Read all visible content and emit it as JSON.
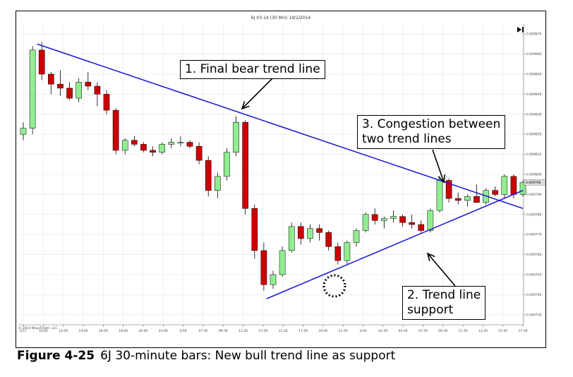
{
  "chart_data": {
    "type": "candlestick",
    "title": "6J 03-14 (30 Min)  19/2/2014",
    "copyright": "© 2014 NinjaTrader, LLC",
    "y_ticks": [
      "0.009870",
      "0.009860",
      "0.009850",
      "0.009840",
      "0.009830",
      "0.009820",
      "0.009810",
      "0.009800",
      "0.009790",
      "0.009780",
      "0.009770",
      "0.009760",
      "0.009750",
      "0.009740",
      "0.009730"
    ],
    "ylim": [
      0.009725,
      0.009875
    ],
    "x_ticks": [
      "2/17",
      "10:00",
      "12:00",
      "14:00",
      "16:00",
      "18:00",
      "20:00",
      "22:00",
      "2/18",
      "07:30",
      "09:30",
      "11:30",
      "13:30",
      "15:30",
      "17:30",
      "19:30",
      "21:30",
      "2/19",
      "02:30",
      "04:30",
      "07:30",
      "09:30",
      "11:30",
      "13:30",
      "15:30",
      "17:30"
    ],
    "last_price": "0.009796",
    "bull_color": "#90ee90",
    "bear_color": "#cc0000",
    "trendline_color": "#1f1fd6",
    "candles": [
      [
        0.00982,
        0.009826,
        0.009817,
        0.009823
      ],
      [
        0.009823,
        0.009864,
        0.00982,
        0.009862
      ],
      [
        0.009862,
        0.009866,
        0.009847,
        0.00985
      ],
      [
        0.00985,
        0.009851,
        0.00984,
        0.009845
      ],
      [
        0.009845,
        0.009852,
        0.009839,
        0.009843
      ],
      [
        0.009843,
        0.009846,
        0.009837,
        0.009838
      ],
      [
        0.009838,
        0.009848,
        0.009836,
        0.009846
      ],
      [
        0.009846,
        0.009851,
        0.009842,
        0.009844
      ],
      [
        0.009844,
        0.009846,
        0.009834,
        0.00984
      ],
      [
        0.00984,
        0.009842,
        0.00983,
        0.009832
      ],
      [
        0.009832,
        0.009833,
        0.00981,
        0.009812
      ],
      [
        0.009812,
        0.009818,
        0.00981,
        0.009817
      ],
      [
        0.009817,
        0.009819,
        0.009814,
        0.009815
      ],
      [
        0.009815,
        0.009816,
        0.009811,
        0.009812
      ],
      [
        0.009812,
        0.009814,
        0.009809,
        0.009811
      ],
      [
        0.009811,
        0.009816,
        0.00981,
        0.009815
      ],
      [
        0.009815,
        0.009818,
        0.009813,
        0.009816
      ],
      [
        0.009816,
        0.009819,
        0.009814,
        0.009816
      ],
      [
        0.009816,
        0.009817,
        0.009813,
        0.009814
      ],
      [
        0.009814,
        0.009816,
        0.009805,
        0.009807
      ],
      [
        0.009807,
        0.009809,
        0.009789,
        0.009792
      ],
      [
        0.009792,
        0.009801,
        0.009788,
        0.009799
      ],
      [
        0.009799,
        0.009813,
        0.009797,
        0.009811
      ],
      [
        0.009811,
        0.009829,
        0.009809,
        0.009826
      ],
      [
        0.009826,
        0.009827,
        0.00978,
        0.009783
      ],
      [
        0.009783,
        0.009785,
        0.009758,
        0.009762
      ],
      [
        0.009762,
        0.009766,
        0.009742,
        0.009745
      ],
      [
        0.009745,
        0.009752,
        0.009743,
        0.00975
      ],
      [
        0.00975,
        0.009764,
        0.009749,
        0.009762
      ],
      [
        0.009762,
        0.009776,
        0.009761,
        0.009774
      ],
      [
        0.009774,
        0.009776,
        0.009765,
        0.009768
      ],
      [
        0.009768,
        0.009775,
        0.009766,
        0.009773
      ],
      [
        0.009773,
        0.009775,
        0.009767,
        0.009771
      ],
      [
        0.009771,
        0.009772,
        0.009762,
        0.009764
      ],
      [
        0.009764,
        0.009766,
        0.009755,
        0.009757
      ],
      [
        0.009757,
        0.009767,
        0.009755,
        0.009766
      ],
      [
        0.009766,
        0.009773,
        0.009764,
        0.009772
      ],
      [
        0.009772,
        0.009781,
        0.009771,
        0.00978
      ],
      [
        0.00978,
        0.009783,
        0.009775,
        0.009777
      ],
      [
        0.009777,
        0.009779,
        0.009773,
        0.009778
      ],
      [
        0.009778,
        0.009782,
        0.009776,
        0.009779
      ],
      [
        0.009779,
        0.00978,
        0.009774,
        0.009776
      ],
      [
        0.009776,
        0.00978,
        0.009773,
        0.009775
      ],
      [
        0.009775,
        0.009777,
        0.009771,
        0.009772
      ],
      [
        0.009772,
        0.009783,
        0.009771,
        0.009782
      ],
      [
        0.009782,
        0.009799,
        0.009781,
        0.009797
      ],
      [
        0.009797,
        0.009798,
        0.009786,
        0.009788
      ],
      [
        0.009788,
        0.009791,
        0.009785,
        0.009787
      ],
      [
        0.009787,
        0.00979,
        0.009784,
        0.009789
      ],
      [
        0.009789,
        0.009795,
        0.009786,
        0.009786
      ],
      [
        0.009786,
        0.009793,
        0.009785,
        0.009792
      ],
      [
        0.009792,
        0.009794,
        0.009789,
        0.00979
      ],
      [
        0.00979,
        0.0098,
        0.009788,
        0.009799
      ],
      [
        0.009799,
        0.0098,
        0.009788,
        0.00979
      ],
      [
        0.00979,
        0.009797,
        0.009789,
        0.009796
      ]
    ],
    "annotations": [
      {
        "label_lines": [
          "1. Final bear trend line"
        ]
      },
      {
        "label_lines": [
          "2. Trend line",
          "support"
        ]
      },
      {
        "label_lines": [
          "3. Congestion between",
          "two trend lines"
        ]
      }
    ],
    "trendlines": [
      {
        "name": "bear",
        "x0": 1.5,
        "y0": 0.009865,
        "x1": 54,
        "y1": 0.009783
      },
      {
        "name": "bull",
        "x0": 26.3,
        "y0": 0.009738,
        "x1": 54,
        "y1": 0.009792
      }
    ]
  },
  "caption": {
    "figure": "Figure 4-25",
    "text": "6J 30-minute bars: New bull trend line as support"
  }
}
